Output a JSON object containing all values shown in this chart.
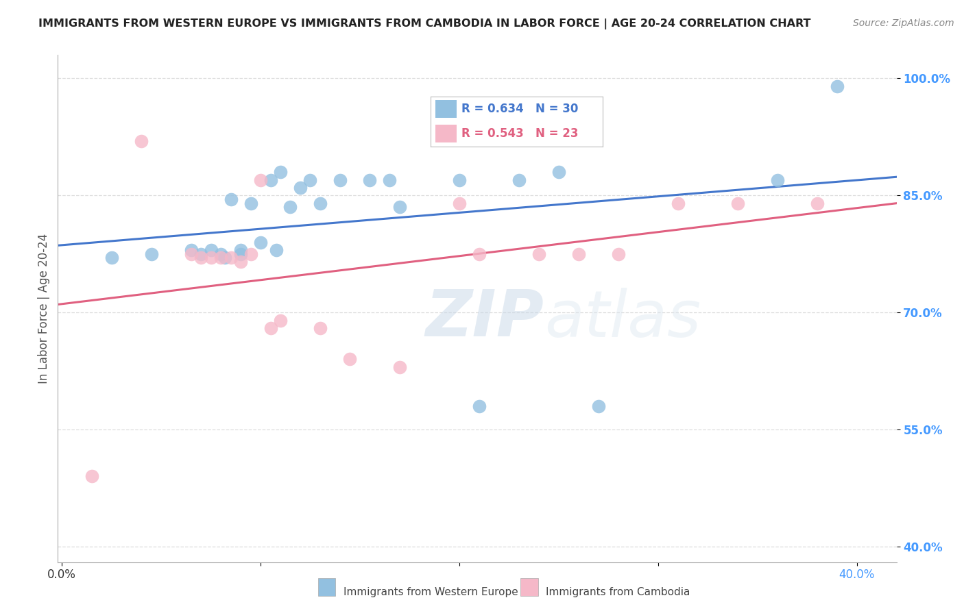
{
  "title": "IMMIGRANTS FROM WESTERN EUROPE VS IMMIGRANTS FROM CAMBODIA IN LABOR FORCE | AGE 20-24 CORRELATION CHART",
  "source": "Source: ZipAtlas.com",
  "ylabel": "In Labor Force | Age 20-24",
  "xlim": [
    -0.002,
    0.42
  ],
  "ylim": [
    0.38,
    1.03
  ],
  "xtick_positions": [
    0.0,
    0.1,
    0.2,
    0.3,
    0.4
  ],
  "xtick_labels": [
    "0.0%",
    "",
    "",
    "",
    "40.0%"
  ],
  "ytick_positions": [
    0.4,
    0.55,
    0.7,
    0.85,
    1.0
  ],
  "ytick_labels": [
    "40.0%",
    "55.0%",
    "70.0%",
    "85.0%",
    "100.0%"
  ],
  "blue_scatter_x": [
    0.025,
    0.045,
    0.065,
    0.07,
    0.075,
    0.08,
    0.082,
    0.085,
    0.09,
    0.09,
    0.095,
    0.1,
    0.105,
    0.108,
    0.11,
    0.115,
    0.12,
    0.125,
    0.13,
    0.14,
    0.155,
    0.165,
    0.17,
    0.2,
    0.21,
    0.23,
    0.25,
    0.27,
    0.36,
    0.39
  ],
  "blue_scatter_y": [
    0.77,
    0.775,
    0.78,
    0.775,
    0.78,
    0.775,
    0.77,
    0.845,
    0.78,
    0.775,
    0.84,
    0.79,
    0.87,
    0.78,
    0.88,
    0.835,
    0.86,
    0.87,
    0.84,
    0.87,
    0.87,
    0.87,
    0.835,
    0.87,
    0.58,
    0.87,
    0.88,
    0.58,
    0.87,
    0.99
  ],
  "pink_scatter_x": [
    0.015,
    0.04,
    0.065,
    0.07,
    0.075,
    0.08,
    0.085,
    0.09,
    0.095,
    0.1,
    0.105,
    0.11,
    0.13,
    0.145,
    0.17,
    0.2,
    0.21,
    0.24,
    0.26,
    0.28,
    0.31,
    0.34,
    0.38
  ],
  "pink_scatter_y": [
    0.49,
    0.92,
    0.775,
    0.77,
    0.77,
    0.77,
    0.77,
    0.765,
    0.775,
    0.87,
    0.68,
    0.69,
    0.68,
    0.64,
    0.63,
    0.84,
    0.775,
    0.775,
    0.775,
    0.775,
    0.84,
    0.84,
    0.84
  ],
  "blue_color": "#92C0E0",
  "pink_color": "#F5B8C8",
  "blue_line_color": "#4477CC",
  "pink_line_color": "#E06080",
  "R_blue": 0.634,
  "N_blue": 30,
  "R_pink": 0.543,
  "N_pink": 23,
  "legend_label_blue": "Immigrants from Western Europe",
  "legend_label_pink": "Immigrants from Cambodia",
  "watermark_zip": "ZIP",
  "watermark_atlas": "atlas",
  "background_color": "#ffffff",
  "grid_color": "#dddddd",
  "title_color": "#222222",
  "axis_label_color": "#555555",
  "tick_color_right": "#4499FF",
  "tick_color_bottom_left": "#333333",
  "tick_color_bottom_right": "#4499FF"
}
